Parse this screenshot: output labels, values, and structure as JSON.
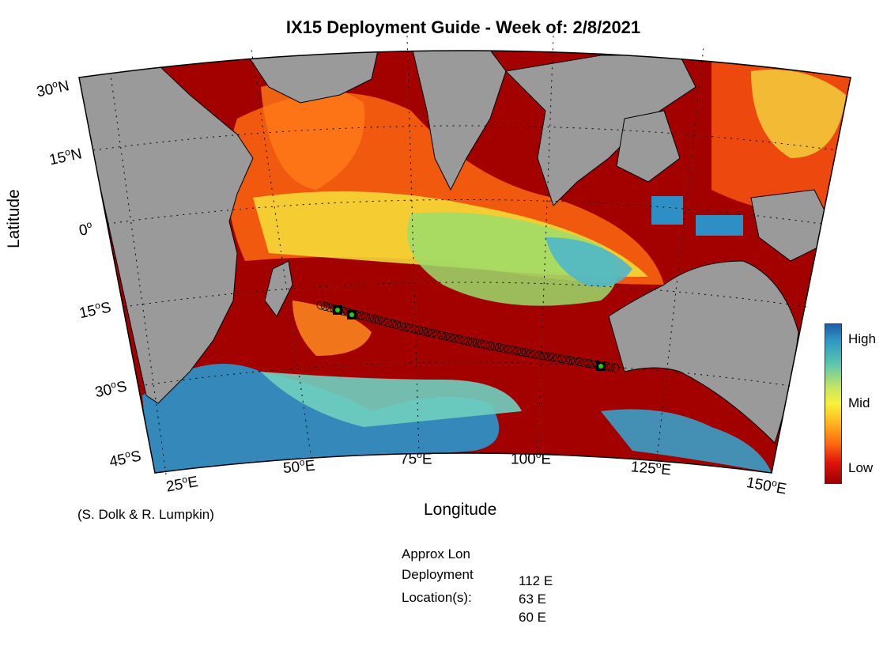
{
  "title": "IX15 Deployment Guide - Week of: 2/8/2021",
  "axes": {
    "xlabel": "Longitude",
    "ylabel": "Latitude",
    "lon_ticks": [
      {
        "deg": "25",
        "hemi": "E"
      },
      {
        "deg": "50",
        "hemi": "E"
      },
      {
        "deg": "75",
        "hemi": "E"
      },
      {
        "deg": "100",
        "hemi": "E"
      },
      {
        "deg": "125",
        "hemi": "E"
      },
      {
        "deg": "150",
        "hemi": "E"
      }
    ],
    "lat_ticks": [
      {
        "deg": "30",
        "hemi": "N"
      },
      {
        "deg": "15",
        "hemi": "N"
      },
      {
        "deg": "0",
        "hemi": ""
      },
      {
        "deg": "15",
        "hemi": "S"
      },
      {
        "deg": "30",
        "hemi": "S"
      },
      {
        "deg": "45",
        "hemi": "S"
      }
    ]
  },
  "colorbar": {
    "high": "High",
    "mid": "Mid",
    "low": "Low"
  },
  "credit": "(S. Dolk & R. Lumpkin)",
  "deployment": {
    "heading_lines": [
      "Approx Lon",
      "Deployment",
      "Location(s):"
    ],
    "locations": [
      "112 E",
      "63 E",
      "60 E"
    ]
  },
  "map_data": {
    "projection": "conic",
    "lon_range": [
      20,
      150
    ],
    "lat_range": [
      -50,
      30
    ],
    "colormap": "jet-like (blue high, red low)",
    "land_color": "#999999",
    "track": {
      "type": "repeat line",
      "from_lon": 55,
      "to_lon": 117
    },
    "deployment_lons": [
      112,
      63,
      60
    ],
    "deployment_marker_color": "#22cc22"
  }
}
